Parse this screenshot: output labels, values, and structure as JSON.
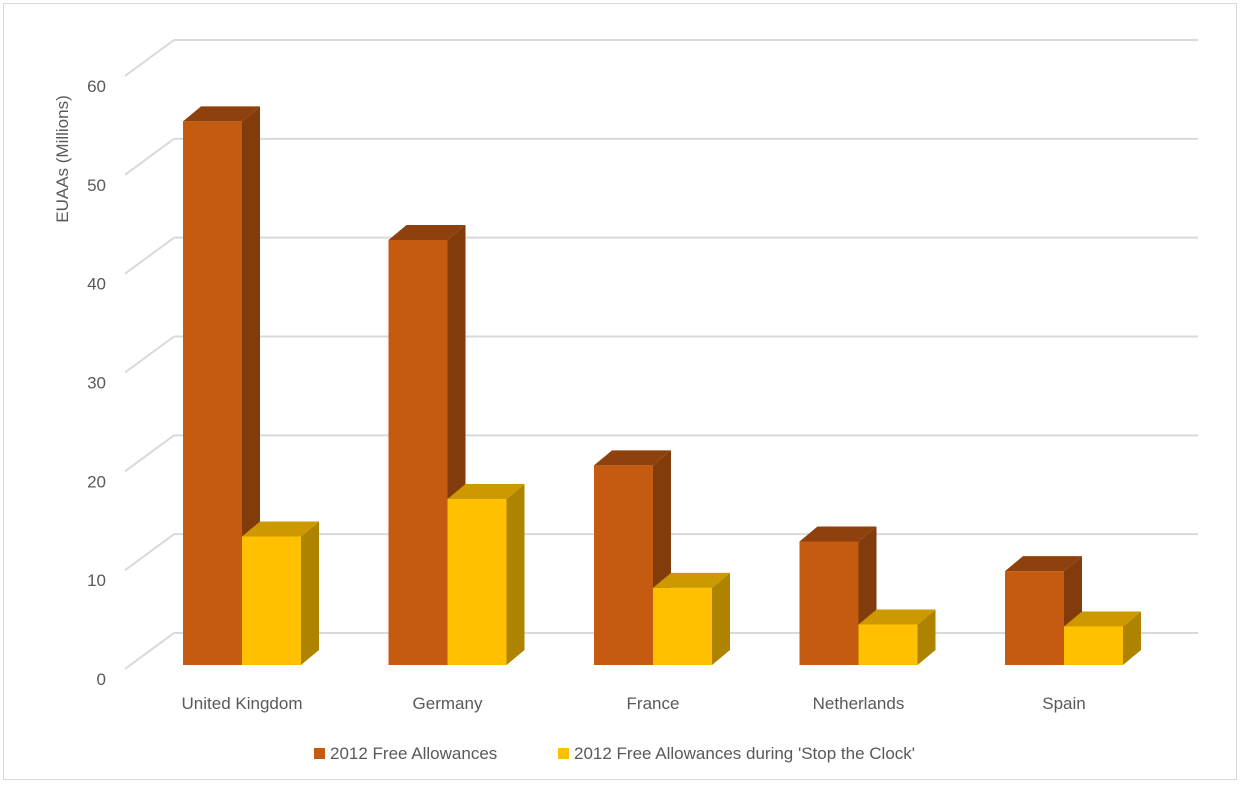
{
  "chart_data": {
    "type": "bar",
    "title": "",
    "xlabel": "",
    "ylabel": "EUAAs (Millions)",
    "ylim": [
      0,
      60
    ],
    "yticks": [
      0,
      10,
      20,
      30,
      40,
      50,
      60
    ],
    "grid": true,
    "legend_position": "bottom",
    "style": "3d-clustered-column",
    "categories": [
      "United Kingdom",
      "Germany",
      "France",
      "Netherlands",
      "Spain"
    ],
    "series": [
      {
        "name": "2012 Free Allowances",
        "values": [
          55,
          43,
          20.2,
          12.5,
          9.5
        ],
        "color": "#c55a11"
      },
      {
        "name": "2012 Free Allowances during 'Stop the Clock'",
        "values": [
          13,
          16.8,
          7.8,
          4.1,
          3.9
        ],
        "color": "#ffc000"
      }
    ]
  }
}
